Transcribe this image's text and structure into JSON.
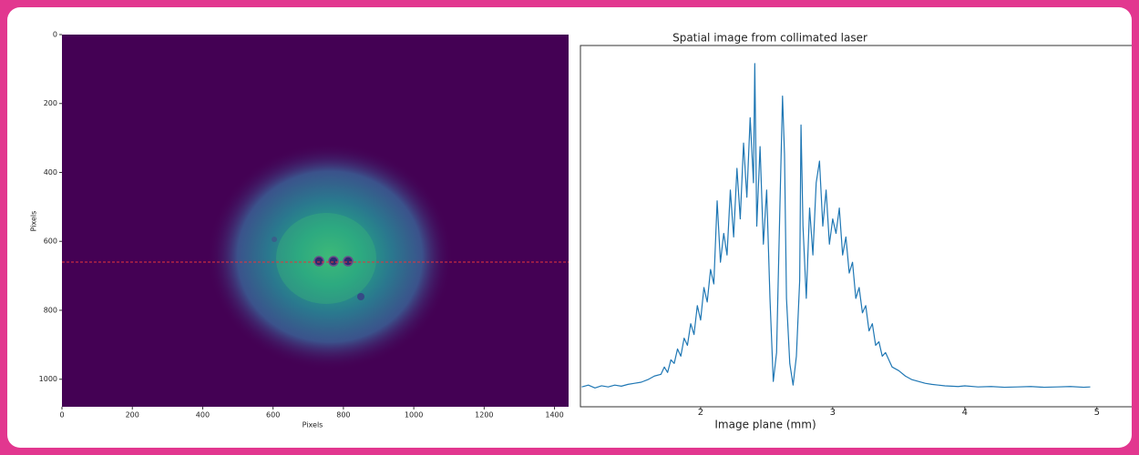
{
  "chart_data": [
    {
      "type": "image",
      "xlabel": "Pixels",
      "ylabel": "Pixels",
      "xlim": [
        0,
        1440
      ],
      "ylim": [
        1080,
        0
      ],
      "xticks": [
        0,
        200,
        400,
        600,
        800,
        1000,
        1200,
        1400
      ],
      "yticks": [
        0,
        200,
        400,
        600,
        800,
        1000
      ],
      "background": "#440154",
      "hline": 660,
      "hline_color": "#e8333a"
    },
    {
      "type": "line",
      "title": "Spatial image from collimated laser",
      "xlabel": "Image plane (mm)",
      "xlim": [
        1.09,
        5.25
      ],
      "ylim": [
        0,
        1
      ],
      "xticks": [
        2,
        3,
        4,
        5
      ],
      "color": "#1f77b4",
      "x": [
        1.1,
        1.15,
        1.2,
        1.25,
        1.3,
        1.35,
        1.4,
        1.45,
        1.5,
        1.55,
        1.6,
        1.65,
        1.7,
        1.725,
        1.75,
        1.775,
        1.8,
        1.825,
        1.85,
        1.875,
        1.9,
        1.925,
        1.95,
        1.975,
        2.0,
        2.025,
        2.05,
        2.075,
        2.1,
        2.125,
        2.15,
        2.175,
        2.2,
        2.225,
        2.25,
        2.275,
        2.3,
        2.325,
        2.35,
        2.375,
        2.4,
        2.41,
        2.425,
        2.45,
        2.475,
        2.5,
        2.525,
        2.55,
        2.575,
        2.6,
        2.62,
        2.635,
        2.65,
        2.675,
        2.7,
        2.725,
        2.75,
        2.76,
        2.775,
        2.8,
        2.825,
        2.85,
        2.875,
        2.9,
        2.925,
        2.95,
        2.975,
        3.0,
        3.025,
        3.05,
        3.075,
        3.1,
        3.125,
        3.15,
        3.175,
        3.2,
        3.225,
        3.25,
        3.275,
        3.3,
        3.325,
        3.35,
        3.375,
        3.4,
        3.45,
        3.5,
        3.55,
        3.6,
        3.65,
        3.7,
        3.75,
        3.8,
        3.85,
        3.9,
        3.95,
        4.0,
        4.1,
        4.2,
        4.3,
        4.4,
        4.5,
        4.6,
        4.7,
        4.8,
        4.9,
        4.95
      ],
      "values": [
        0.055,
        0.06,
        0.052,
        0.058,
        0.055,
        0.06,
        0.057,
        0.062,
        0.065,
        0.068,
        0.075,
        0.085,
        0.09,
        0.11,
        0.095,
        0.13,
        0.12,
        0.16,
        0.14,
        0.19,
        0.17,
        0.23,
        0.2,
        0.28,
        0.24,
        0.33,
        0.29,
        0.38,
        0.34,
        0.57,
        0.4,
        0.48,
        0.42,
        0.6,
        0.47,
        0.66,
        0.52,
        0.73,
        0.58,
        0.8,
        0.62,
        0.95,
        0.5,
        0.72,
        0.45,
        0.6,
        0.3,
        0.07,
        0.15,
        0.55,
        0.86,
        0.7,
        0.3,
        0.12,
        0.06,
        0.14,
        0.35,
        0.78,
        0.5,
        0.3,
        0.55,
        0.42,
        0.62,
        0.68,
        0.5,
        0.6,
        0.45,
        0.52,
        0.48,
        0.55,
        0.42,
        0.47,
        0.37,
        0.4,
        0.3,
        0.33,
        0.26,
        0.28,
        0.21,
        0.23,
        0.17,
        0.18,
        0.14,
        0.15,
        0.11,
        0.1,
        0.085,
        0.075,
        0.07,
        0.065,
        0.062,
        0.06,
        0.058,
        0.057,
        0.056,
        0.058,
        0.055,
        0.056,
        0.054,
        0.055,
        0.056,
        0.054,
        0.055,
        0.056,
        0.054,
        0.055
      ]
    }
  ]
}
